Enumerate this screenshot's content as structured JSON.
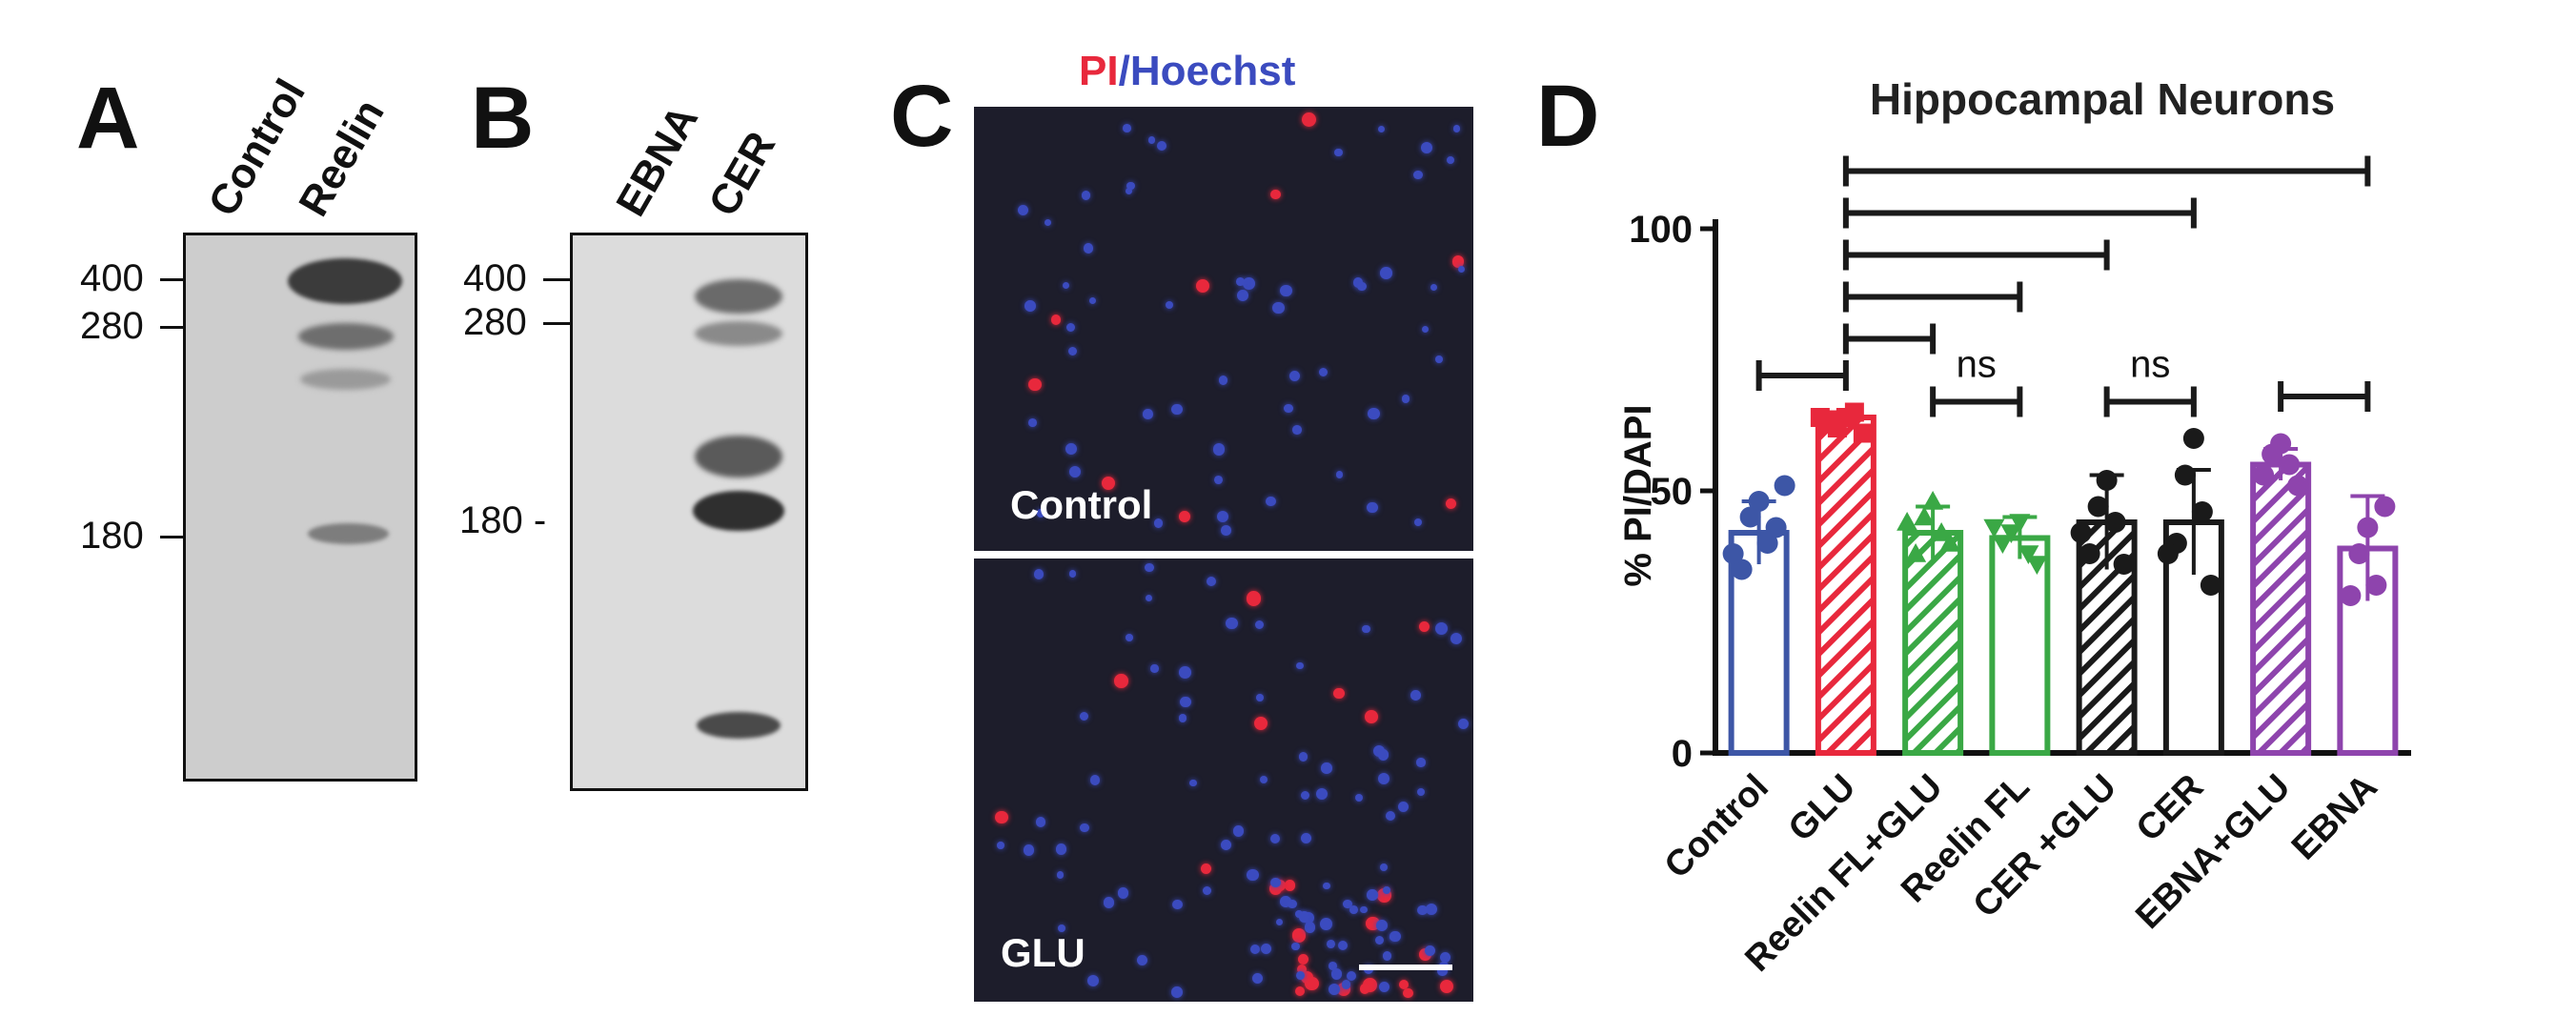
{
  "panels": {
    "A": {
      "letter": "A",
      "lanes": [
        "Control",
        "Reelin"
      ],
      "markers": [
        "400",
        "280",
        "180"
      ]
    },
    "B": {
      "letter": "B",
      "lanes": [
        "EBNA",
        "CER"
      ],
      "markers": [
        "400",
        "280",
        "180 -"
      ]
    },
    "C": {
      "letter": "C",
      "stain_pi": "PI",
      "stain_sep": "/",
      "stain_hoechst": "Hoechst",
      "top_label": "Control",
      "bottom_label": "GLU",
      "colors": {
        "pi": "#e8283c",
        "hoechst": "#3b4bbf",
        "background": "#1d1d2b"
      }
    },
    "D": {
      "letter": "D"
    }
  },
  "chart_data": {
    "type": "bar",
    "title": "Hippocampal Neurons",
    "ylabel": "% PI/DAPI",
    "xlabel": "",
    "ylim": [
      0,
      100
    ],
    "yticks": [
      "0",
      "50",
      "100"
    ],
    "categories": [
      "Control",
      "GLU",
      "Reelin FL+GLU",
      "Reelin FL",
      "CER +GLU",
      "CER",
      "EBNA+GLU",
      "EBNA"
    ],
    "values": [
      42,
      64,
      42,
      41,
      44,
      44,
      55,
      39
    ],
    "errors": [
      6,
      1,
      5,
      4,
      9,
      10,
      3,
      10
    ],
    "hatched": [
      false,
      true,
      true,
      false,
      true,
      false,
      true,
      false
    ],
    "colors": [
      "#3d56a6",
      "#e8283c",
      "#3aa845",
      "#3aa845",
      "#1a1a1a",
      "#1a1a1a",
      "#8e44ad",
      "#8e44ad"
    ],
    "points": [
      [
        48,
        45,
        40,
        35,
        43,
        38,
        51
      ],
      [
        64,
        62,
        65,
        63,
        61,
        64
      ],
      [
        48,
        45,
        42,
        38,
        40,
        44
      ],
      [
        44,
        42,
        38,
        40,
        36,
        43
      ],
      [
        52,
        47,
        44,
        38,
        36,
        42
      ],
      [
        60,
        53,
        46,
        40,
        32,
        38
      ],
      [
        59,
        57,
        55,
        53,
        51
      ],
      [
        43,
        38,
        32,
        30,
        47
      ]
    ],
    "brackets": [
      {
        "from": 0,
        "to": 1,
        "level": 72,
        "label": ""
      },
      {
        "from": 1,
        "to": 2,
        "level": 79,
        "label": ""
      },
      {
        "from": 1,
        "to": 3,
        "level": 87,
        "label": ""
      },
      {
        "from": 1,
        "to": 4,
        "level": 95,
        "label": ""
      },
      {
        "from": 1,
        "to": 5,
        "level": 103,
        "label": ""
      },
      {
        "from": 1,
        "to": 7,
        "level": 111,
        "label": ""
      },
      {
        "from": 2,
        "to": 3,
        "level": 67,
        "label": "ns"
      },
      {
        "from": 4,
        "to": 5,
        "level": 67,
        "label": "ns"
      },
      {
        "from": 6,
        "to": 7,
        "level": 68,
        "label": ""
      }
    ],
    "grid": false,
    "legend": "none"
  }
}
